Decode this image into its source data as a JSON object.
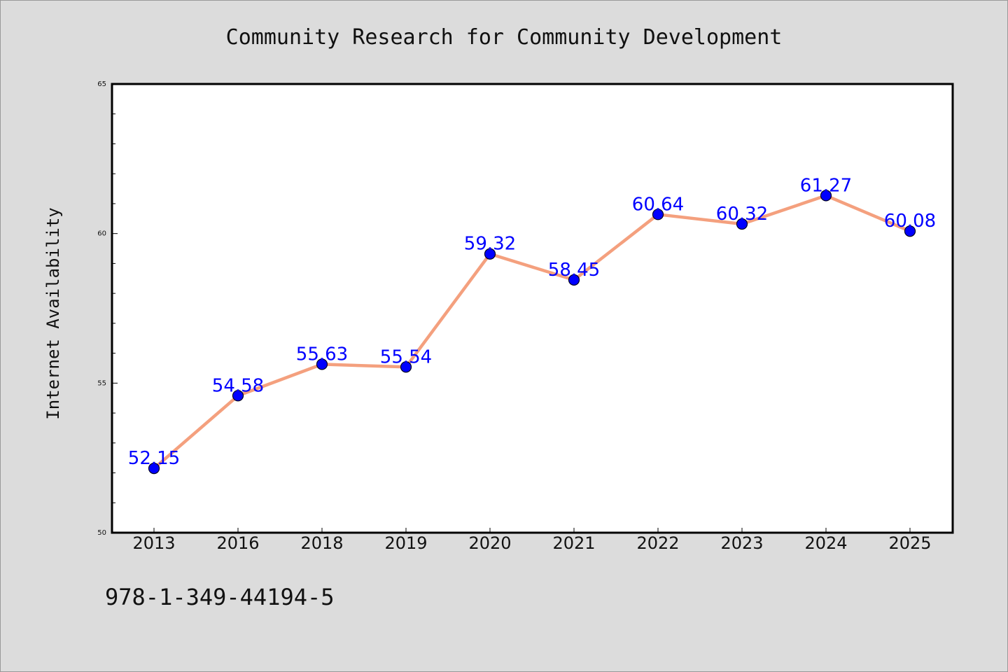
{
  "chart_data": {
    "type": "line",
    "title": "Community Research for Community Development",
    "xlabel": "",
    "ylabel": "Internet Availability",
    "categories": [
      "2013",
      "2016",
      "2018",
      "2019",
      "2020",
      "2021",
      "2022",
      "2023",
      "2024",
      "2025"
    ],
    "series": [
      {
        "values": [
          52.15,
          54.58,
          55.63,
          55.54,
          59.32,
          58.45,
          60.64,
          60.32,
          61.27,
          60.08
        ]
      }
    ],
    "data_labels": [
      "52.15",
      "54.58",
      "55.63",
      "55.54",
      "59.32",
      "58.45",
      "60.64",
      "60.32",
      "61.27",
      "60.08"
    ],
    "ylim": [
      50,
      65
    ],
    "yticks": [
      "50",
      "55",
      "60",
      "65"
    ],
    "grid": false,
    "line_color": "#f4a07e",
    "marker_color": "#0000ff",
    "label_color": "#0000ff"
  },
  "footnote": "978-1-349-44194-5"
}
